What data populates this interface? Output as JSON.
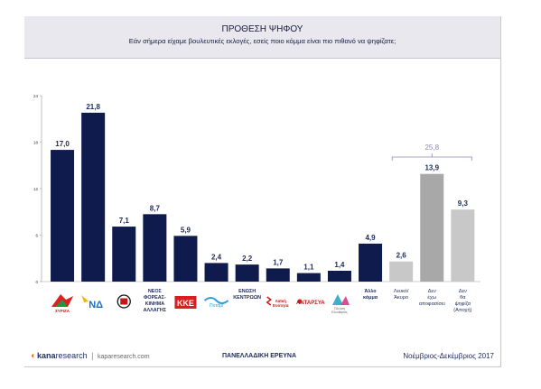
{
  "header": {
    "title": "ΠΡΟΘΕΣΗ ΨΗΦΟΥ",
    "subtitle": "Εάν σήμερα είχαμε βουλευτικές εκλογές, εσείς ποιο κόμμα είναι πιο πιθανό να ψηφίζατε;"
  },
  "footer": {
    "brand": "kanaresearch",
    "brand_prefix": "kana",
    "brand_suffix": "research",
    "separator": "|",
    "url": "kaparesearch.com",
    "center": "ΠΑΝΕΛΛΑΔΙΚΗ ΕΡΕΥΝΑ",
    "date": "Νοέμβριος-Δεκέμβριος 2017"
  },
  "colors": {
    "party_bar": "#0f1b4c",
    "light_gray": "#c8c8c8",
    "mid_gray": "#a8a8a8",
    "dark_gray": "#8e8e8e",
    "bracket": "#8a8ab0",
    "header_bg": "#e8e8ee"
  },
  "chart_data": {
    "type": "bar",
    "title": "ΠΡΟΘΕΣΗ ΨΗΦΟΥ",
    "ylim": [
      0,
      24
    ],
    "yticks": [
      0,
      6,
      12,
      18,
      24
    ],
    "grid": false,
    "categories": [
      {
        "label": "ΣΥΡΙΖΑ",
        "value": 17.0,
        "display": "17,0",
        "color": "party",
        "logo": "syriza-logo"
      },
      {
        "label": "ΝΔ",
        "value": 21.8,
        "display": "21,8",
        "color": "party",
        "logo": "nd-logo"
      },
      {
        "label": "",
        "value": 7.1,
        "display": "7,1",
        "color": "party",
        "logo": "golden-dawn-logo"
      },
      {
        "label": "ΝΕΟΣ ΦΟΡΕΑΣ- ΚΙΝΗΜΑ ΑΛΛΑΓΗΣ",
        "value": 8.7,
        "display": "8,7",
        "color": "party",
        "logo": ""
      },
      {
        "label": "ΚΚΕ",
        "value": 5.9,
        "display": "5,9",
        "color": "party",
        "logo": "kke-logo"
      },
      {
        "label": "Ποτάμι",
        "value": 2.4,
        "display": "2,4",
        "color": "party",
        "logo": "potami-logo"
      },
      {
        "label": "ΕΝΩΣΗ ΚΕΝΤΡΩΩΝ",
        "value": 2.2,
        "display": "2,2",
        "color": "party",
        "logo": ""
      },
      {
        "label": "Λαϊκή Ενότητα",
        "value": 1.7,
        "display": "1,7",
        "color": "party",
        "logo": "laiki-enotita-logo"
      },
      {
        "label": "ΑΝΤΑΡΣΥΑ",
        "value": 1.1,
        "display": "1,1",
        "color": "party",
        "logo": "antarsya-logo"
      },
      {
        "label": "Πλεύση Ελευθερίας",
        "value": 1.4,
        "display": "1,4",
        "color": "party",
        "logo": "plefsi-logo"
      },
      {
        "label": "Άλλο κόμμα",
        "value": 4.9,
        "display": "4,9",
        "color": "party",
        "logo": ""
      },
      {
        "label": "Λευκό/ Άκυρο",
        "value": 2.6,
        "display": "2,6",
        "color": "light",
        "logo": ""
      },
      {
        "label": "Δεν έχω αποφασίσει",
        "value": 13.9,
        "display": "13,9",
        "color": "mid",
        "logo": ""
      },
      {
        "label": "Δεν θα ψηφίζα (Αποχή)",
        "value": 9.3,
        "display": "9,3",
        "color": "light",
        "logo": ""
      }
    ],
    "bracket": {
      "label": "25,8",
      "from": 11,
      "to": 13
    }
  }
}
